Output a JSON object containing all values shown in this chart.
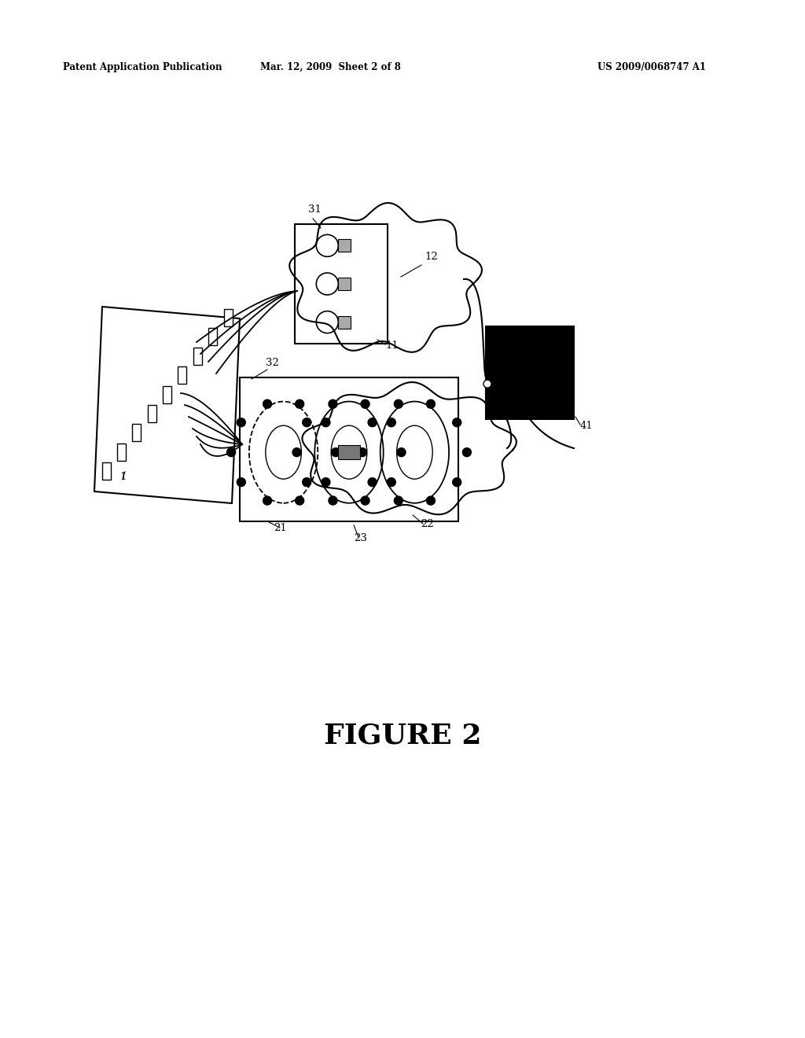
{
  "bg_color": "#ffffff",
  "header_left": "Patent Application Publication",
  "header_mid": "Mar. 12, 2009  Sheet 2 of 8",
  "header_right": "US 2009/0068747 A1",
  "figure_label": "FIGURE 2",
  "fig_w": 10.24,
  "fig_h": 13.2,
  "dpi": 100
}
